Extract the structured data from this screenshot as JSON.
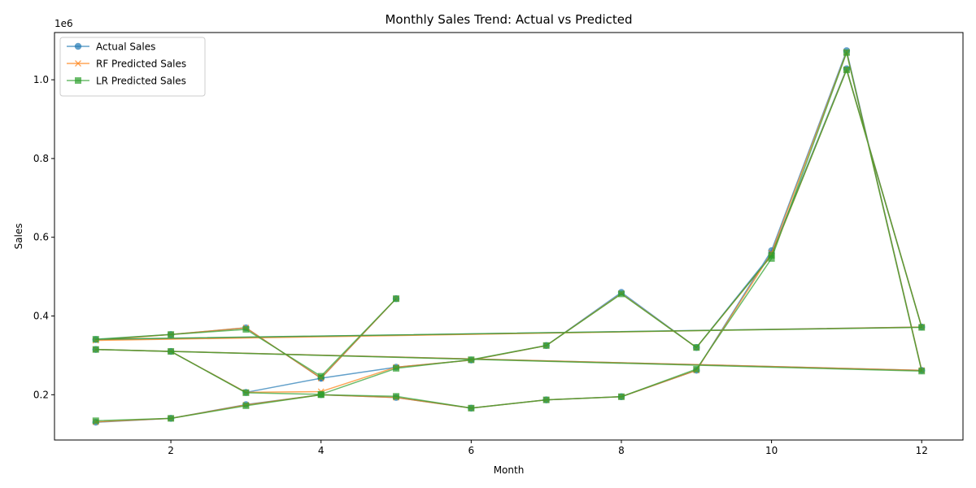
{
  "chart_data": {
    "type": "line",
    "title": "Monthly Sales Trend: Actual vs Predicted",
    "xlabel": "Month",
    "ylabel": "Sales",
    "y_offset_label": "1e6",
    "xlim": [
      0.45,
      12.55
    ],
    "ylim": [
      85000,
      1120000
    ],
    "x_ticks": [
      2,
      4,
      6,
      8,
      10,
      12
    ],
    "y_ticks": [
      200000,
      400000,
      600000,
      800000,
      1000000
    ],
    "y_tick_labels": [
      "0.2",
      "0.4",
      "0.6",
      "0.8",
      "1.0"
    ],
    "grid": false,
    "legend_position": "upper-left",
    "x": [
      1,
      2,
      3,
      4,
      5,
      6,
      7,
      8,
      9,
      10,
      11,
      12,
      1,
      2,
      3,
      4,
      5,
      6,
      7,
      8,
      9,
      10,
      11,
      12,
      1,
      2,
      3,
      4,
      5
    ],
    "series": [
      {
        "name": "Actual Sales",
        "color": "#1f77b4",
        "marker": "circle",
        "values": [
          130000,
          140000,
          175000,
          200000,
          193000,
          166000,
          187000,
          195000,
          262000,
          566000,
          1074000,
          262000,
          315000,
          310000,
          206000,
          242000,
          270000,
          288000,
          325000,
          460000,
          320000,
          558000,
          1028000,
          372000,
          340000,
          353000,
          370000,
          242000,
          444000
        ]
      },
      {
        "name": "RF Predicted Sales",
        "color": "#ff7f0e",
        "marker": "x",
        "values": [
          131000,
          140000,
          174000,
          200000,
          193000,
          166000,
          187000,
          195000,
          262000,
          560000,
          1070000,
          262000,
          315000,
          310000,
          206000,
          208000,
          270000,
          288000,
          325000,
          457000,
          320000,
          553000,
          1026000,
          372000,
          338000,
          353000,
          370000,
          242000,
          444000
        ]
      },
      {
        "name": "LR Predicted Sales",
        "color": "#2ca02c",
        "marker": "square",
        "values": [
          134000,
          140000,
          172000,
          200000,
          196000,
          166000,
          187000,
          195000,
          265000,
          546000,
          1069000,
          260000,
          315000,
          310000,
          205000,
          201000,
          267000,
          289000,
          325000,
          456000,
          320000,
          554000,
          1025000,
          371000,
          341000,
          353000,
          366000,
          247000,
          444000
        ]
      }
    ]
  }
}
